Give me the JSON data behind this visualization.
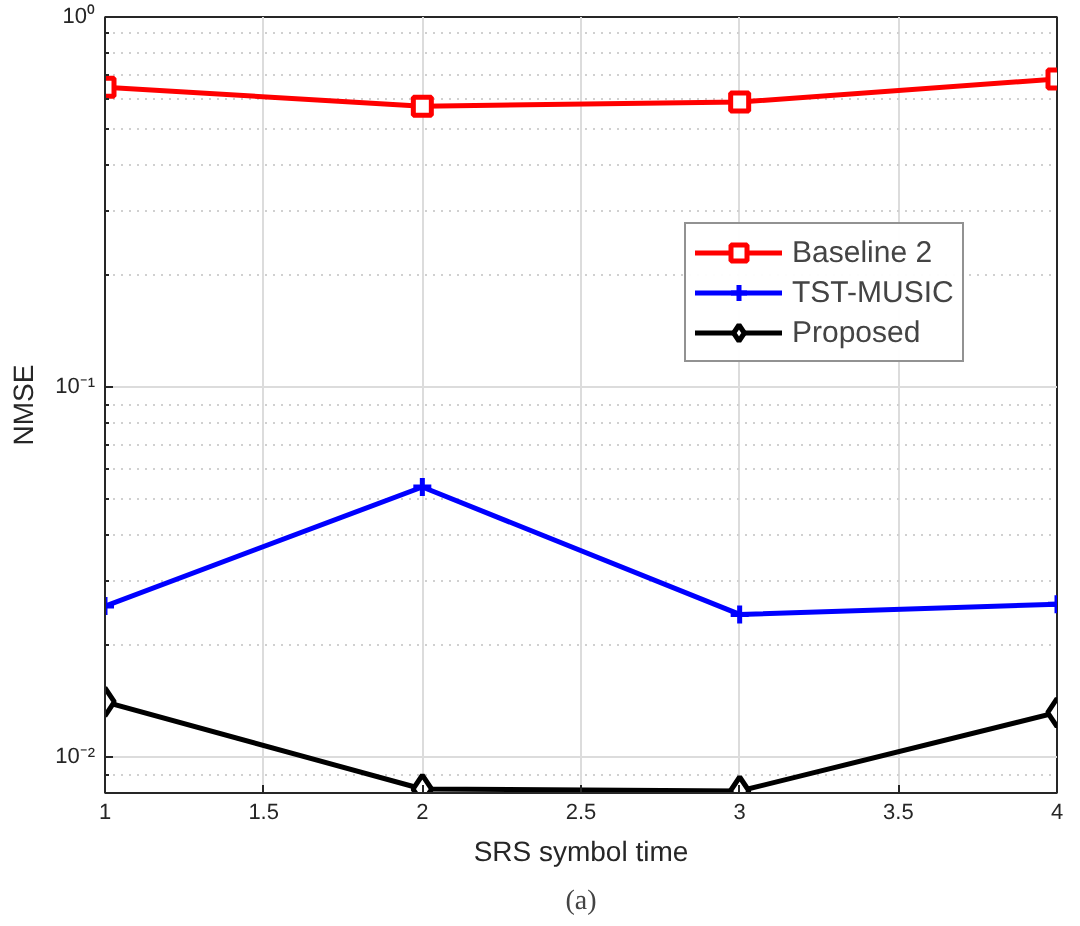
{
  "chart_data": {
    "type": "line",
    "xlabel": "SRS symbol time",
    "ylabel": "NMSE",
    "annotations": [
      "(a)"
    ],
    "x": [
      1,
      2,
      3,
      4
    ],
    "xlim": [
      1,
      4
    ],
    "xticks": [
      1,
      1.5,
      2,
      2.5,
      3,
      3.5,
      4
    ],
    "ylim": [
      0.008,
      1
    ],
    "yticks": [
      {
        "value": 0.01,
        "label": "10⁻²"
      },
      {
        "value": 0.1,
        "label": "10⁻¹"
      },
      {
        "value": 1,
        "label": "10⁰"
      }
    ],
    "log": "y",
    "grid": true,
    "legend": "top right",
    "line_style": "solid",
    "series": [
      {
        "name": "Baseline 2",
        "color": "#ff0000",
        "marker": "square",
        "values": [
          0.646,
          0.574,
          0.589,
          0.68
        ]
      },
      {
        "name": "TST-MUSIC",
        "color": "#0000ff",
        "marker": "cross",
        "values": [
          0.0256,
          0.0537,
          0.0243,
          0.0259
        ]
      },
      {
        "name": "Proposed",
        "color": "#000000",
        "marker": "diamond",
        "values": [
          0.0141,
          0.0082,
          0.0081,
          0.0132
        ]
      }
    ]
  }
}
